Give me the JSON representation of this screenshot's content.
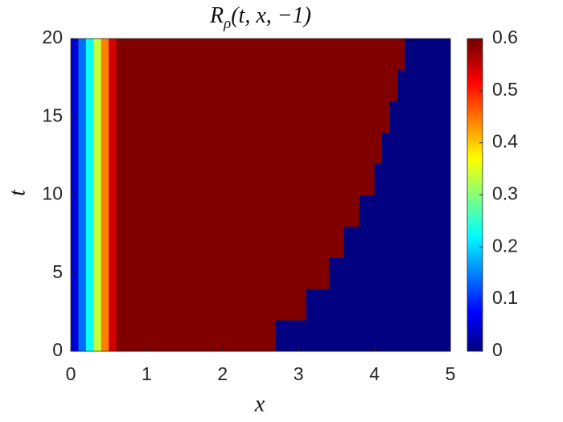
{
  "chart_data": {
    "type": "heatmap",
    "title": {
      "base": "R",
      "subscript": "ρ",
      "args": "(t, x, −1)"
    },
    "x_label": "x",
    "y_label": "t",
    "colormap": "jet",
    "xlim": [
      0,
      5
    ],
    "ylim": [
      0,
      20
    ],
    "xticks": [
      0,
      1,
      2,
      3,
      4,
      5
    ],
    "yticks": [
      0,
      5,
      10,
      15,
      20
    ],
    "clim": [
      0,
      0.6
    ],
    "cticks": [
      0,
      0.1,
      0.2,
      0.3,
      0.4,
      0.5,
      0.6
    ],
    "x": [
      0.05,
      0.15,
      0.25,
      0.35,
      0.45,
      0.55,
      0.65,
      0.75,
      0.85,
      0.95,
      1.05,
      1.15,
      1.25,
      1.35,
      1.45,
      1.55,
      1.65,
      1.75,
      1.85,
      1.95,
      2.05,
      2.15,
      2.25,
      2.35,
      2.45,
      2.55,
      2.65,
      2.75,
      2.85,
      2.95,
      3.05,
      3.15,
      3.25,
      3.35,
      3.45,
      3.55,
      3.65,
      3.75,
      3.85,
      3.95,
      4.05,
      4.15,
      4.25,
      4.35,
      4.45,
      4.55,
      4.65,
      4.75,
      4.85,
      4.95
    ],
    "y": [
      1,
      3,
      5,
      7,
      9,
      11,
      13,
      15,
      17,
      19
    ],
    "z": [
      [
        0.05,
        0.14,
        0.23,
        0.34,
        0.45,
        0.55,
        0.6,
        0.6,
        0.6,
        0.6,
        0.6,
        0.6,
        0.6,
        0.6,
        0.6,
        0.6,
        0.6,
        0.6,
        0.6,
        0.6,
        0.6,
        0.6,
        0.6,
        0.6,
        0.6,
        0.6,
        0.6,
        0,
        0,
        0,
        0,
        0,
        0,
        0,
        0,
        0,
        0,
        0,
        0,
        0,
        0,
        0,
        0,
        0,
        0,
        0,
        0,
        0,
        0,
        0
      ],
      [
        0.05,
        0.14,
        0.23,
        0.34,
        0.45,
        0.55,
        0.6,
        0.6,
        0.6,
        0.6,
        0.6,
        0.6,
        0.6,
        0.6,
        0.6,
        0.6,
        0.6,
        0.6,
        0.6,
        0.6,
        0.6,
        0.6,
        0.6,
        0.6,
        0.6,
        0.6,
        0.6,
        0.6,
        0.6,
        0.6,
        0.6,
        0,
        0,
        0,
        0,
        0,
        0,
        0,
        0,
        0,
        0,
        0,
        0,
        0,
        0,
        0,
        0,
        0,
        0,
        0
      ],
      [
        0.05,
        0.14,
        0.23,
        0.34,
        0.45,
        0.55,
        0.6,
        0.6,
        0.6,
        0.6,
        0.6,
        0.6,
        0.6,
        0.6,
        0.6,
        0.6,
        0.6,
        0.6,
        0.6,
        0.6,
        0.6,
        0.6,
        0.6,
        0.6,
        0.6,
        0.6,
        0.6,
        0.6,
        0.6,
        0.6,
        0.6,
        0.6,
        0.6,
        0.6,
        0,
        0,
        0,
        0,
        0,
        0,
        0,
        0,
        0,
        0,
        0,
        0,
        0,
        0,
        0,
        0
      ],
      [
        0.05,
        0.14,
        0.23,
        0.34,
        0.45,
        0.55,
        0.6,
        0.6,
        0.6,
        0.6,
        0.6,
        0.6,
        0.6,
        0.6,
        0.6,
        0.6,
        0.6,
        0.6,
        0.6,
        0.6,
        0.6,
        0.6,
        0.6,
        0.6,
        0.6,
        0.6,
        0.6,
        0.6,
        0.6,
        0.6,
        0.6,
        0.6,
        0.6,
        0.6,
        0.6,
        0.6,
        0,
        0,
        0,
        0,
        0,
        0,
        0,
        0,
        0,
        0,
        0,
        0,
        0,
        0
      ],
      [
        0.05,
        0.14,
        0.23,
        0.34,
        0.45,
        0.55,
        0.6,
        0.6,
        0.6,
        0.6,
        0.6,
        0.6,
        0.6,
        0.6,
        0.6,
        0.6,
        0.6,
        0.6,
        0.6,
        0.6,
        0.6,
        0.6,
        0.6,
        0.6,
        0.6,
        0.6,
        0.6,
        0.6,
        0.6,
        0.6,
        0.6,
        0.6,
        0.6,
        0.6,
        0.6,
        0.6,
        0.6,
        0.6,
        0,
        0,
        0,
        0,
        0,
        0,
        0,
        0,
        0,
        0,
        0,
        0
      ],
      [
        0.05,
        0.14,
        0.23,
        0.34,
        0.45,
        0.55,
        0.6,
        0.6,
        0.6,
        0.6,
        0.6,
        0.6,
        0.6,
        0.6,
        0.6,
        0.6,
        0.6,
        0.6,
        0.6,
        0.6,
        0.6,
        0.6,
        0.6,
        0.6,
        0.6,
        0.6,
        0.6,
        0.6,
        0.6,
        0.6,
        0.6,
        0.6,
        0.6,
        0.6,
        0.6,
        0.6,
        0.6,
        0.6,
        0.6,
        0.6,
        0,
        0,
        0,
        0,
        0,
        0,
        0,
        0,
        0,
        0
      ],
      [
        0.05,
        0.14,
        0.23,
        0.34,
        0.45,
        0.55,
        0.6,
        0.6,
        0.6,
        0.6,
        0.6,
        0.6,
        0.6,
        0.6,
        0.6,
        0.6,
        0.6,
        0.6,
        0.6,
        0.6,
        0.6,
        0.6,
        0.6,
        0.6,
        0.6,
        0.6,
        0.6,
        0.6,
        0.6,
        0.6,
        0.6,
        0.6,
        0.6,
        0.6,
        0.6,
        0.6,
        0.6,
        0.6,
        0.6,
        0.6,
        0.6,
        0,
        0,
        0,
        0,
        0,
        0,
        0,
        0,
        0
      ],
      [
        0.05,
        0.14,
        0.23,
        0.34,
        0.45,
        0.55,
        0.6,
        0.6,
        0.6,
        0.6,
        0.6,
        0.6,
        0.6,
        0.6,
        0.6,
        0.6,
        0.6,
        0.6,
        0.6,
        0.6,
        0.6,
        0.6,
        0.6,
        0.6,
        0.6,
        0.6,
        0.6,
        0.6,
        0.6,
        0.6,
        0.6,
        0.6,
        0.6,
        0.6,
        0.6,
        0.6,
        0.6,
        0.6,
        0.6,
        0.6,
        0.6,
        0.6,
        0,
        0,
        0,
        0,
        0,
        0,
        0,
        0
      ],
      [
        0.05,
        0.14,
        0.23,
        0.34,
        0.45,
        0.55,
        0.6,
        0.6,
        0.6,
        0.6,
        0.6,
        0.6,
        0.6,
        0.6,
        0.6,
        0.6,
        0.6,
        0.6,
        0.6,
        0.6,
        0.6,
        0.6,
        0.6,
        0.6,
        0.6,
        0.6,
        0.6,
        0.6,
        0.6,
        0.6,
        0.6,
        0.6,
        0.6,
        0.6,
        0.6,
        0.6,
        0.6,
        0.6,
        0.6,
        0.6,
        0.6,
        0.6,
        0.6,
        0,
        0,
        0,
        0,
        0,
        0,
        0
      ],
      [
        0.05,
        0.14,
        0.23,
        0.34,
        0.45,
        0.55,
        0.6,
        0.6,
        0.6,
        0.6,
        0.6,
        0.6,
        0.6,
        0.6,
        0.6,
        0.6,
        0.6,
        0.6,
        0.6,
        0.6,
        0.6,
        0.6,
        0.6,
        0.6,
        0.6,
        0.6,
        0.6,
        0.6,
        0.6,
        0.6,
        0.6,
        0.6,
        0.6,
        0.6,
        0.6,
        0.6,
        0.6,
        0.6,
        0.6,
        0.6,
        0.6,
        0.6,
        0.6,
        0.6,
        0,
        0,
        0,
        0,
        0,
        0
      ]
    ]
  }
}
